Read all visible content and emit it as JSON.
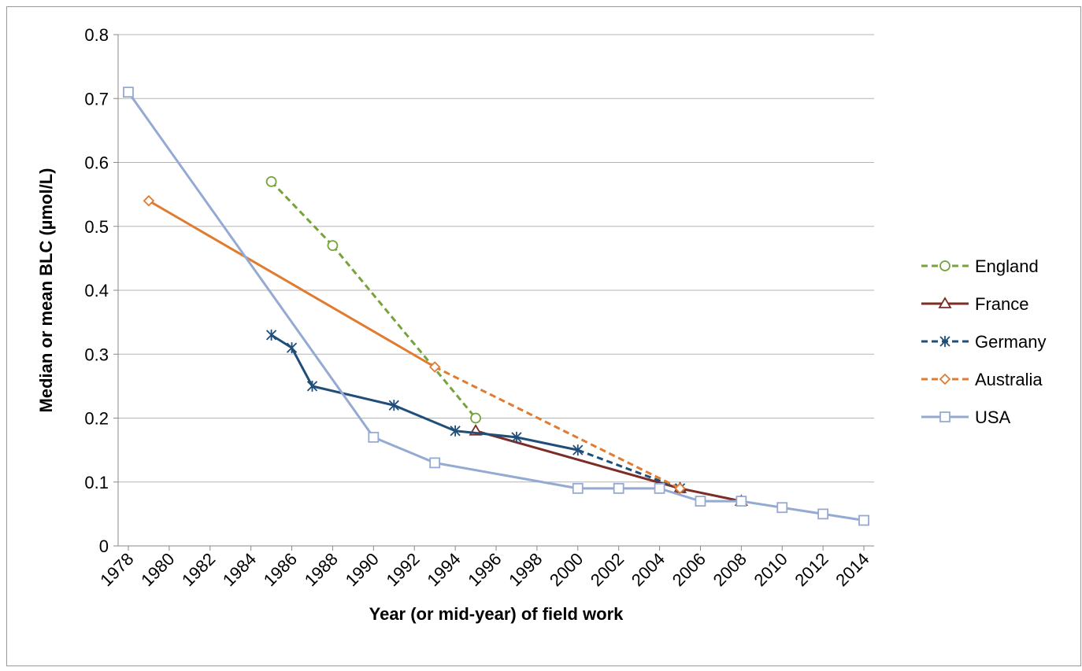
{
  "chart_data": {
    "type": "line",
    "y_label": "Median or mean BLC (µmol/L)",
    "x_label": "Year (or mid-year) of field work",
    "xlim": [
      1977.5,
      2014.5
    ],
    "xticks": [
      1978,
      1980,
      1982,
      1984,
      1986,
      1988,
      1990,
      1992,
      1994,
      1996,
      1998,
      2000,
      2002,
      2004,
      2006,
      2008,
      2010,
      2012,
      2014
    ],
    "ylim": [
      0,
      0.8
    ],
    "yticks": [
      0,
      0.1,
      0.2,
      0.3,
      0.4,
      0.5,
      0.6,
      0.7,
      0.8
    ],
    "grid": true,
    "legend": "right",
    "series": [
      {
        "name": "England",
        "color": "#77a33b",
        "marker": "circle",
        "line_style": "dashed",
        "dashed_segments": [],
        "x": [
          1985,
          1988,
          1995
        ],
        "values": [
          0.57,
          0.47,
          0.2
        ]
      },
      {
        "name": "France",
        "color": "#7b2d26",
        "marker": "triangle",
        "line_style": "solid",
        "dashed_segments": [],
        "x": [
          1995,
          2005,
          2008
        ],
        "values": [
          0.18,
          0.09,
          0.07
        ]
      },
      {
        "name": "Germany",
        "color": "#1f4e79",
        "marker": "asterisk",
        "line_style": "solid",
        "dashed_segments": [
          6
        ],
        "x": [
          1985,
          1986,
          1987,
          1991,
          1994,
          1997,
          2000,
          2005
        ],
        "values": [
          0.33,
          0.31,
          0.25,
          0.22,
          0.18,
          0.17,
          0.15,
          0.09
        ]
      },
      {
        "name": "Australia",
        "color": "#e07b2f",
        "marker": "diamond",
        "line_style": "solid",
        "dashed_segments": [
          1
        ],
        "x": [
          1979,
          1993,
          2005
        ],
        "values": [
          0.54,
          0.28,
          0.09
        ]
      },
      {
        "name": "USA",
        "color": "#95aad3",
        "marker": "square",
        "line_style": "solid",
        "dashed_segments": [],
        "x": [
          1978,
          1990,
          1993,
          2000,
          2002,
          2004,
          2006,
          2008,
          2010,
          2012,
          2014
        ],
        "values": [
          0.71,
          0.17,
          0.13,
          0.09,
          0.09,
          0.09,
          0.07,
          0.07,
          0.06,
          0.05,
          0.04
        ]
      }
    ]
  }
}
